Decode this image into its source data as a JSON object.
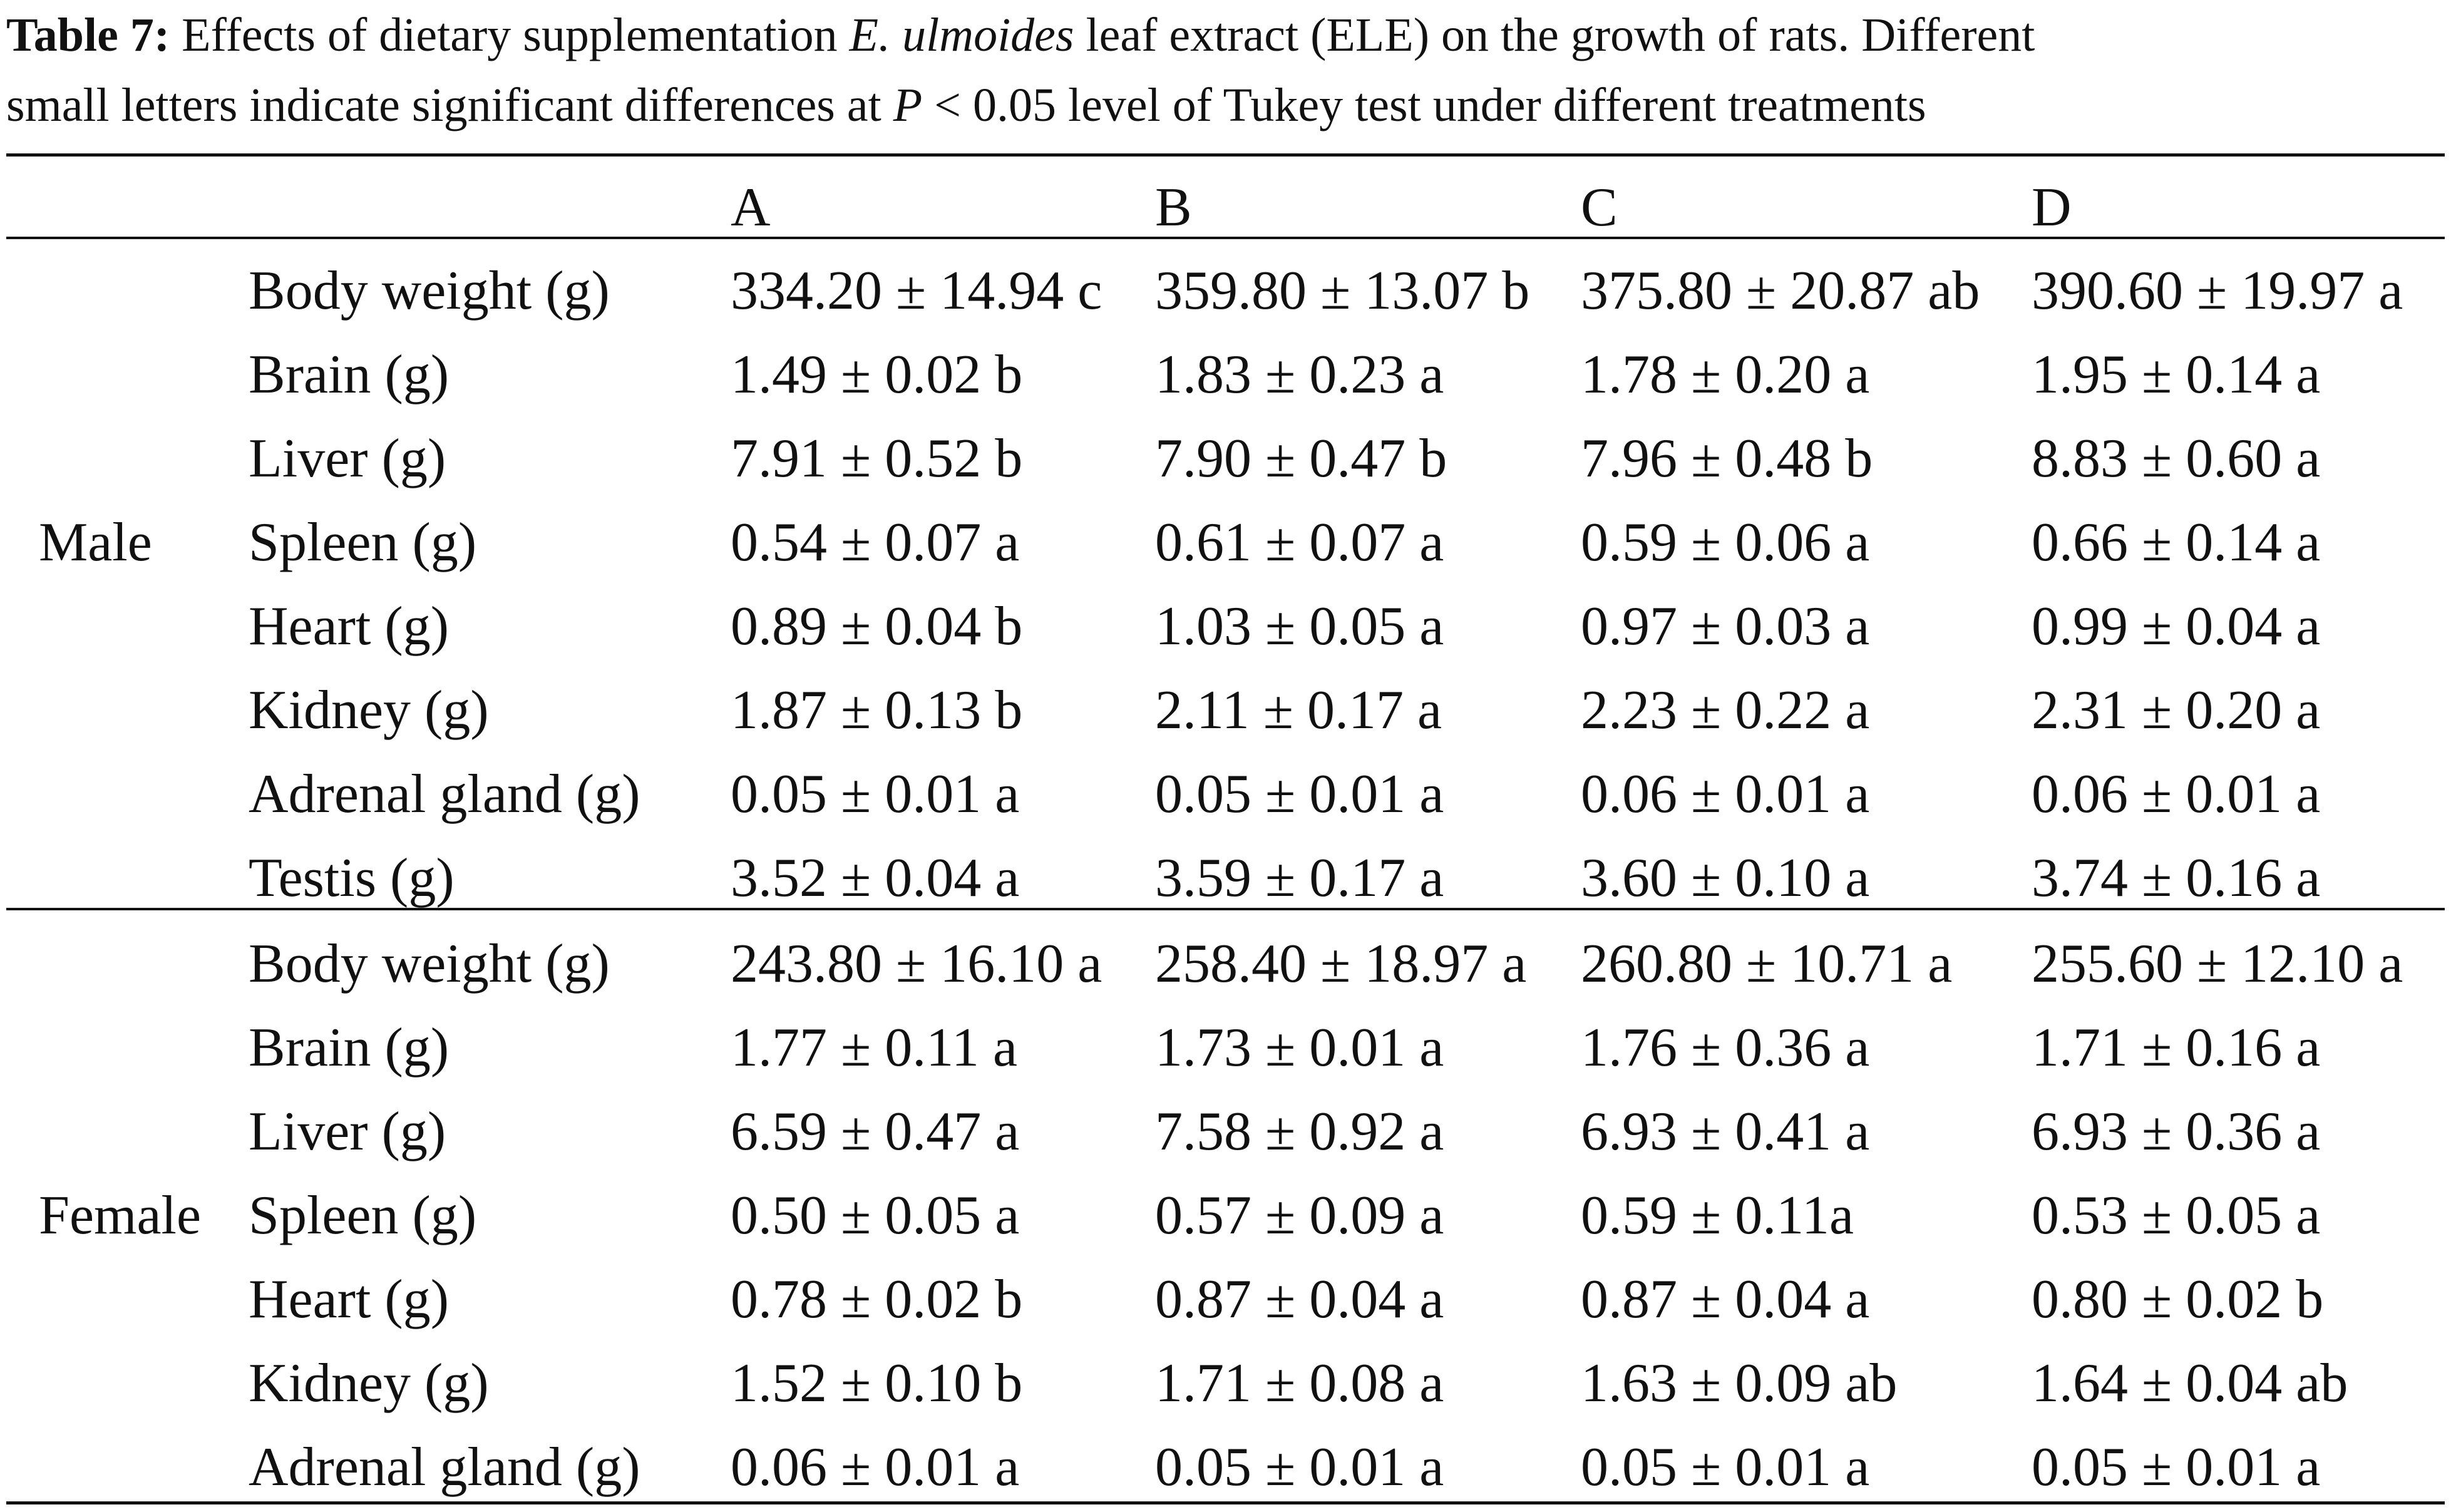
{
  "caption": {
    "label": "Table 7:",
    "part1": " Effects of dietary supplementation ",
    "species": "E. ulmoides",
    "part2": " leaf extract (ELE) on the growth of rats. Different",
    "line2a": "small letters indicate significant differences at ",
    "p_symbol": "P",
    "line2b": " < 0.05 level of Tukey test under different treatments"
  },
  "columns": [
    "A",
    "B",
    "C",
    "D"
  ],
  "groups": [
    {
      "label": "Male",
      "rows": [
        {
          "measure": "Body weight (g)",
          "values": [
            "334.20 ± 14.94 c",
            "359.80 ± 13.07 b",
            "375.80 ± 20.87 ab",
            "390.60 ± 19.97 a"
          ]
        },
        {
          "measure": "Brain (g)",
          "values": [
            "1.49 ± 0.02 b",
            "1.83 ± 0.23 a",
            "1.78 ± 0.20 a",
            "1.95 ± 0.14 a"
          ]
        },
        {
          "measure": "Liver (g)",
          "values": [
            "7.91 ± 0.52 b",
            "7.90 ± 0.47 b",
            "7.96 ± 0.48 b",
            "8.83 ± 0.60 a"
          ]
        },
        {
          "measure": "Spleen (g)",
          "values": [
            "0.54 ± 0.07 a",
            "0.61 ± 0.07 a",
            "0.59 ± 0.06 a",
            "0.66 ± 0.14 a"
          ]
        },
        {
          "measure": "Heart (g)",
          "values": [
            "0.89 ± 0.04 b",
            "1.03 ± 0.05 a",
            "0.97 ± 0.03 a",
            "0.99 ± 0.04 a"
          ]
        },
        {
          "measure": "Kidney (g)",
          "values": [
            "1.87 ± 0.13 b",
            "2.11 ± 0.17 a",
            "2.23 ± 0.22 a",
            "2.31 ± 0.20 a"
          ]
        },
        {
          "measure": "Adrenal gland (g)",
          "values": [
            "0.05 ± 0.01 a",
            "0.05 ± 0.01 a",
            "0.06 ± 0.01 a",
            "0.06 ± 0.01 a"
          ]
        },
        {
          "measure": "Testis (g)",
          "values": [
            "3.52 ± 0.04 a",
            "3.59 ± 0.17 a",
            "3.60 ± 0.10 a",
            "3.74 ± 0.16 a"
          ]
        }
      ]
    },
    {
      "label": "Female",
      "rows": [
        {
          "measure": "Body weight (g)",
          "values": [
            "243.80 ± 16.10 a",
            "258.40 ± 18.97 a",
            "260.80 ± 10.71 a",
            "255.60 ± 12.10 a"
          ]
        },
        {
          "measure": "Brain (g)",
          "values": [
            "1.77 ± 0.11 a",
            "1.73 ± 0.01 a",
            "1.76 ± 0.36 a",
            "1.71 ± 0.16 a"
          ]
        },
        {
          "measure": "Liver (g)",
          "values": [
            "6.59 ± 0.47 a",
            "7.58 ± 0.92 a",
            "6.93 ± 0.41 a",
            "6.93 ± 0.36 a"
          ]
        },
        {
          "measure": "Spleen (g)",
          "values": [
            "0.50 ± 0.05 a",
            "0.57 ± 0.09 a",
            "0.59 ± 0.11a",
            "0.53 ± 0.05 a"
          ]
        },
        {
          "measure": "Heart (g)",
          "values": [
            "0.78 ± 0.02 b",
            "0.87 ± 0.04 a",
            "0.87 ± 0.04 a",
            "0.80 ± 0.02 b"
          ]
        },
        {
          "measure": "Kidney (g)",
          "values": [
            "1.52 ± 0.10 b",
            "1.71 ± 0.08 a",
            "1.63 ± 0.09 ab",
            "1.64 ± 0.04 ab"
          ]
        },
        {
          "measure": "Adrenal gland (g)",
          "values": [
            "0.06 ± 0.01 a",
            "0.05 ± 0.01 a",
            "0.05 ± 0.01 a",
            "0.05 ± 0.01 a"
          ]
        }
      ]
    }
  ]
}
